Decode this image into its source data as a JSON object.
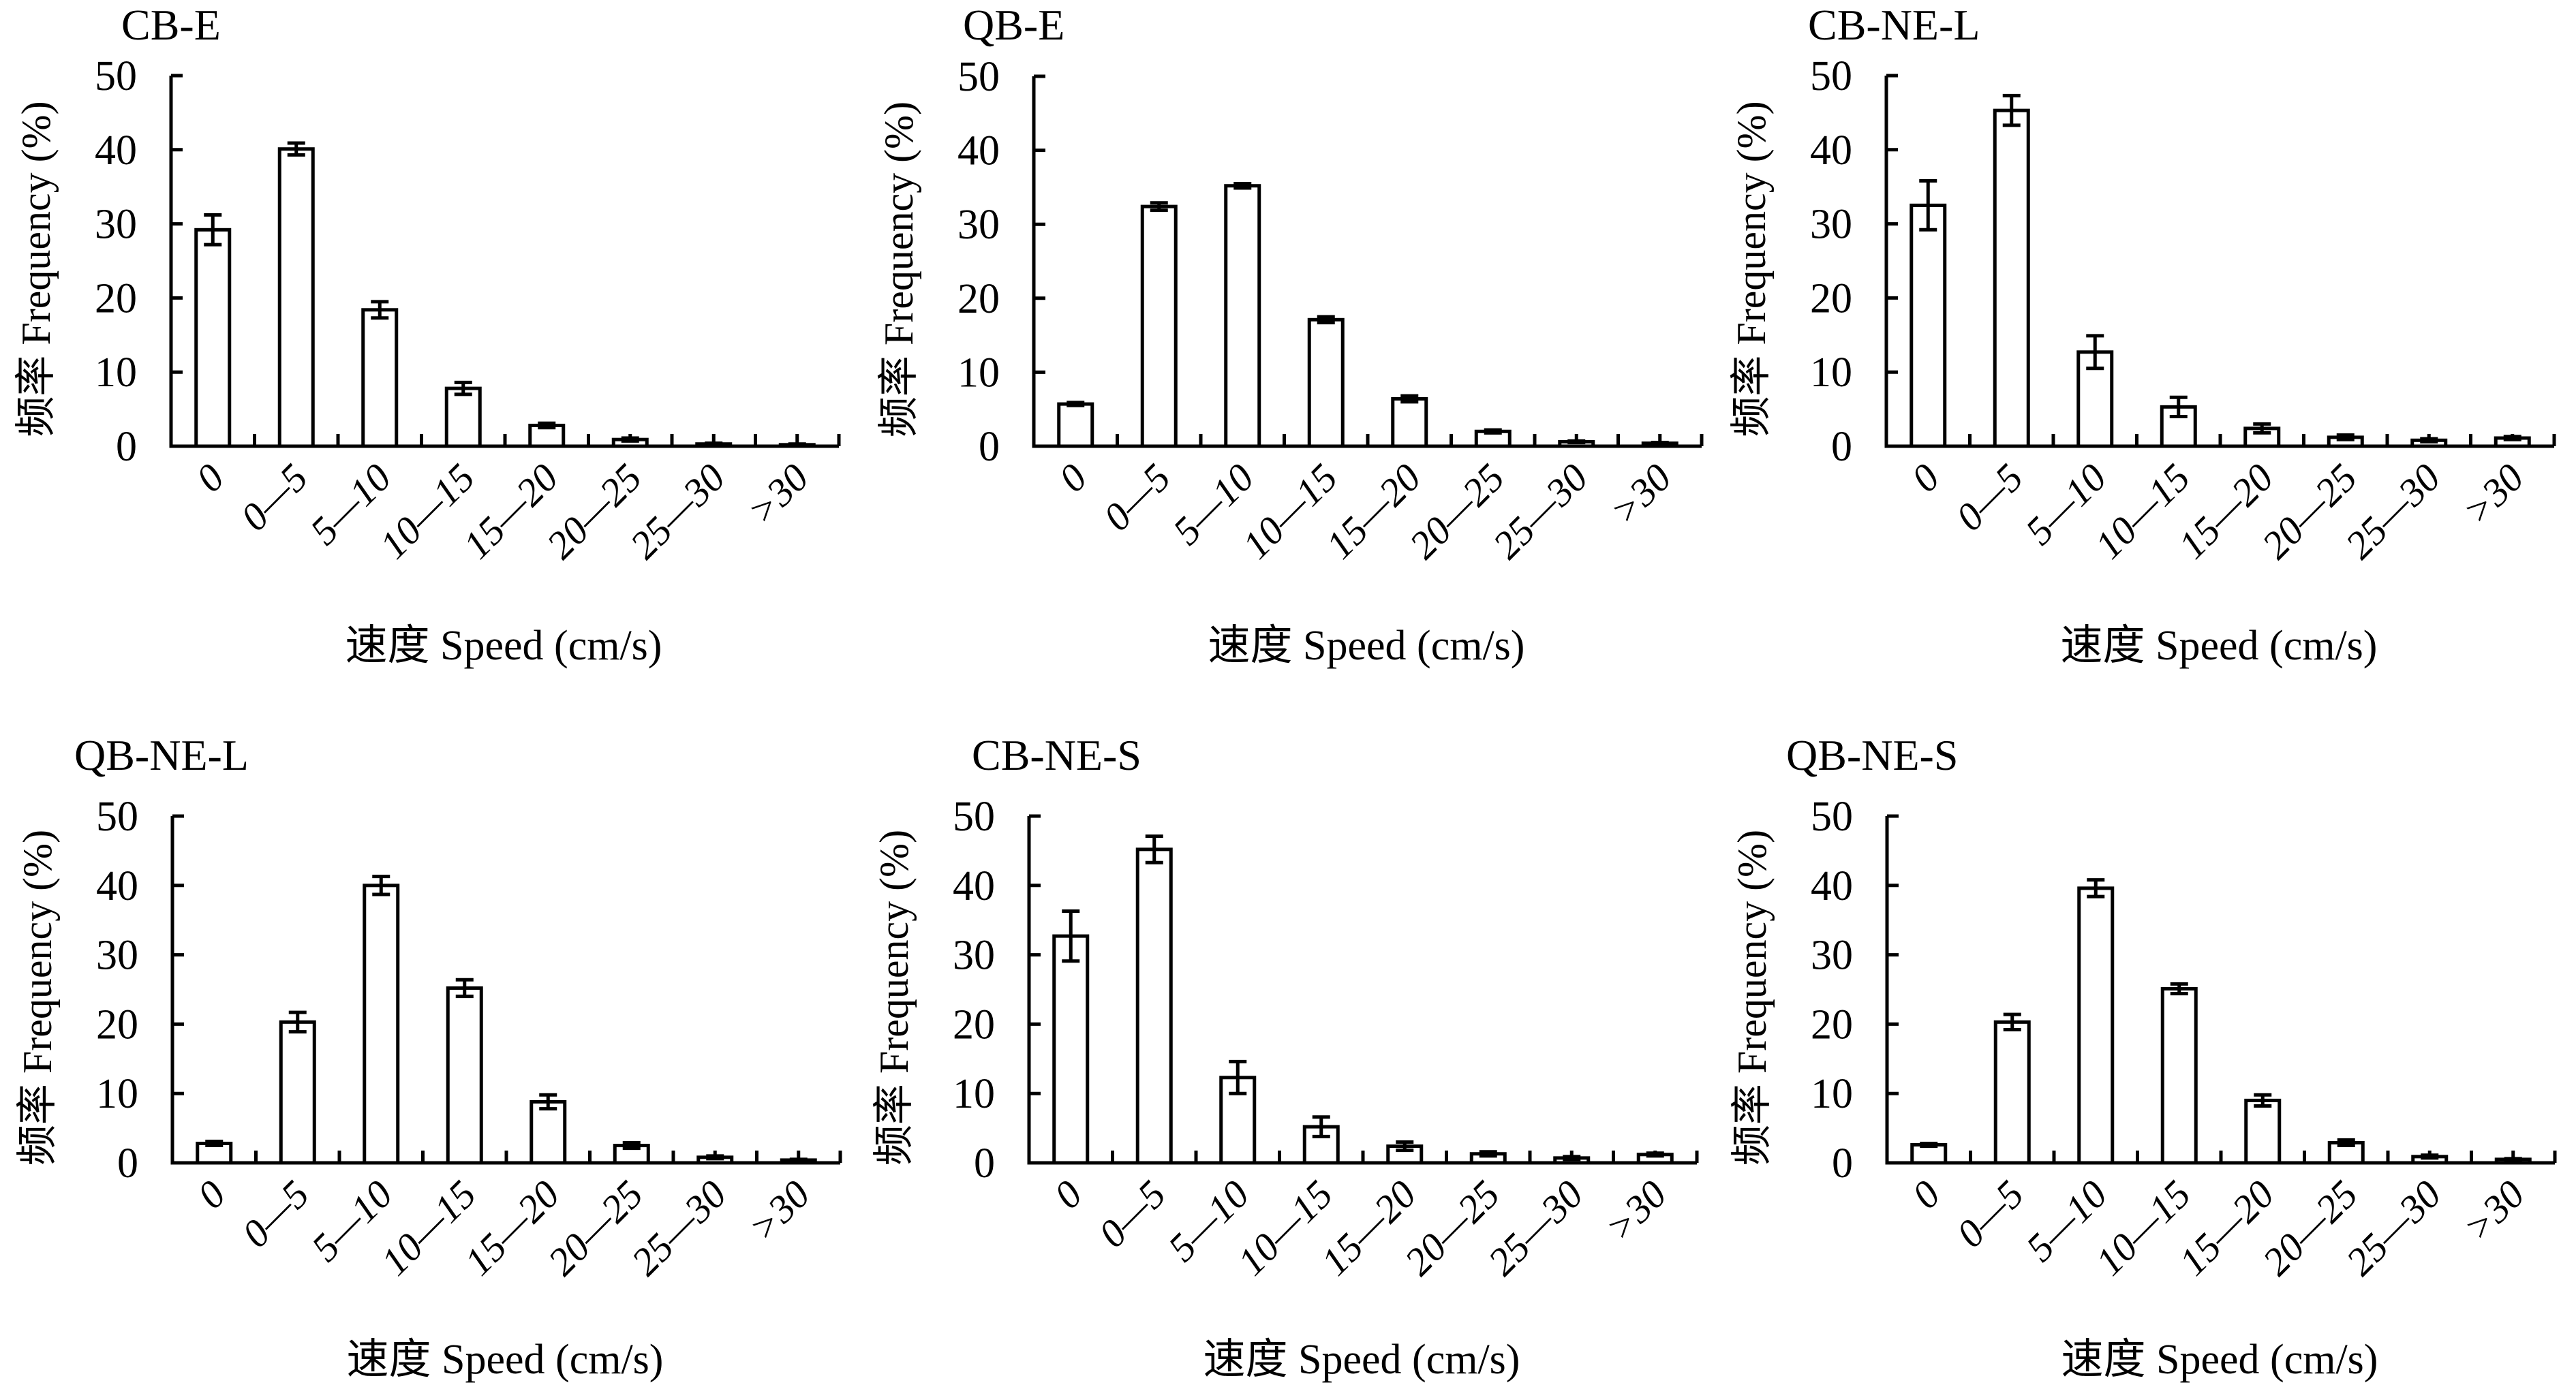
{
  "chart_data": [
    {
      "type": "bar",
      "title": "CB-E",
      "xlabel": "速度 Speed (cm/s)",
      "ylabel": "频率 Frequency (%)",
      "categories": [
        "0",
        "0—5",
        "5—10",
        "10—15",
        "15—20",
        "20—25",
        "25—30",
        ">30"
      ],
      "values": [
        29.2,
        40.1,
        18.4,
        7.8,
        2.8,
        0.9,
        0.3,
        0.2
      ],
      "errors": [
        2.0,
        0.8,
        1.1,
        0.8,
        0.3,
        0.2,
        0.1,
        0.1
      ],
      "ylim": [
        0,
        50
      ],
      "yticks": [
        "0",
        "10",
        "20",
        "30",
        "40",
        "50"
      ],
      "grid": false
    },
    {
      "type": "bar",
      "title": "QB-E",
      "xlabel": "速度 Speed (cm/s)",
      "ylabel": "频率 Frequency (%)",
      "categories": [
        "0",
        "0—5",
        "5—10",
        "10—15",
        "15—20",
        "20—25",
        "25—30",
        ">30"
      ],
      "values": [
        5.7,
        32.4,
        35.2,
        17.1,
        6.4,
        2.0,
        0.6,
        0.4
      ],
      "errors": [
        0.2,
        0.5,
        0.3,
        0.4,
        0.4,
        0.2,
        0.1,
        0.1
      ],
      "ylim": [
        0,
        50
      ],
      "yticks": [
        "0",
        "10",
        "20",
        "30",
        "40",
        "50"
      ],
      "grid": false
    },
    {
      "type": "bar",
      "title": "CB-NE-L",
      "xlabel": "速度 Speed (cm/s)",
      "ylabel": "频率 Frequency (%)",
      "categories": [
        "0",
        "0—5",
        "5—10",
        "10—15",
        "15—20",
        "20—25",
        "25—30",
        ">30"
      ],
      "values": [
        32.5,
        45.3,
        12.7,
        5.3,
        2.4,
        1.2,
        0.8,
        1.1
      ],
      "errors": [
        3.3,
        2.0,
        2.2,
        1.3,
        0.6,
        0.3,
        0.2,
        0.2
      ],
      "ylim": [
        0,
        50
      ],
      "yticks": [
        "0",
        "10",
        "20",
        "30",
        "40",
        "50"
      ],
      "grid": false
    },
    {
      "type": "bar",
      "title": "QB-NE-L",
      "xlabel": "速度 Speed (cm/s)",
      "ylabel": "频率 Frequency (%)",
      "categories": [
        "0",
        "0—5",
        "5—10",
        "10—15",
        "15—20",
        "20—25",
        "25—30",
        ">30"
      ],
      "values": [
        2.8,
        20.3,
        40.0,
        25.2,
        8.8,
        2.5,
        0.8,
        0.4
      ],
      "errors": [
        0.3,
        1.4,
        1.3,
        1.2,
        1.0,
        0.4,
        0.2,
        0.1
      ],
      "ylim": [
        0,
        50
      ],
      "yticks": [
        "0",
        "10",
        "20",
        "30",
        "40",
        "50"
      ],
      "grid": false
    },
    {
      "type": "bar",
      "title": "CB-NE-S",
      "xlabel": "速度 Speed (cm/s)",
      "ylabel": "频率 Frequency (%)",
      "categories": [
        "0",
        "0—5",
        "5—10",
        "10—15",
        "15—20",
        "20—25",
        "25—30",
        ">30"
      ],
      "values": [
        32.7,
        45.2,
        12.3,
        5.2,
        2.4,
        1.3,
        0.7,
        1.2
      ],
      "errors": [
        3.6,
        1.9,
        2.3,
        1.4,
        0.6,
        0.3,
        0.2,
        0.2
      ],
      "ylim": [
        0,
        50
      ],
      "yticks": [
        "0",
        "10",
        "20",
        "30",
        "40",
        "50"
      ],
      "grid": false
    },
    {
      "type": "bar",
      "title": "QB-NE-S",
      "xlabel": "速度 Speed (cm/s)",
      "ylabel": "频率 Frequency (%)",
      "categories": [
        "0",
        "0—5",
        "5—10",
        "10—15",
        "15—20",
        "20—25",
        "25—30",
        ">30"
      ],
      "values": [
        2.6,
        20.3,
        39.6,
        25.1,
        9.0,
        2.9,
        0.9,
        0.5
      ],
      "errors": [
        0.2,
        1.1,
        1.2,
        0.7,
        0.8,
        0.4,
        0.2,
        0.1
      ],
      "ylim": [
        0,
        50
      ],
      "yticks": [
        "0",
        "10",
        "20",
        "30",
        "40",
        "50"
      ],
      "grid": false
    }
  ]
}
